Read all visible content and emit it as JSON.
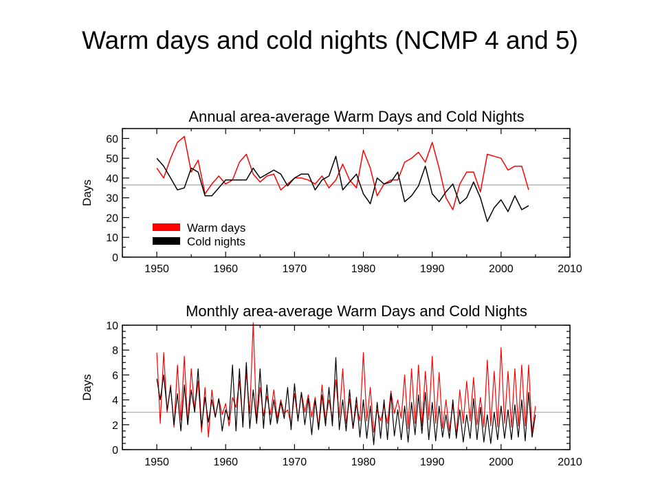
{
  "title": "Warm days and cold nights (NCMP 4 and 5)",
  "colors": {
    "warm": "#ff0000",
    "cold": "#000000",
    "reference": "#a6a6a6",
    "axes": "#000000"
  },
  "chart_data": [
    {
      "type": "line",
      "title": "Annual area-average Warm Days and Cold Nights",
      "xlabel": "",
      "ylabel": "Days",
      "xlim": [
        1945,
        2010
      ],
      "ylim": [
        0,
        65
      ],
      "x_ticks": [
        1950,
        1960,
        1970,
        1980,
        1990,
        2000,
        2010
      ],
      "y_ticks": [
        0,
        10,
        20,
        30,
        40,
        50,
        60
      ],
      "grid": false,
      "legend_position": "bottom-left",
      "reference_line": 36.5,
      "legend": [
        {
          "label": "Warm days",
          "color": "#ff0000"
        },
        {
          "label": "Cold nights",
          "color": "#000000"
        }
      ],
      "x": [
        1950,
        1951,
        1952,
        1953,
        1954,
        1955,
        1956,
        1957,
        1958,
        1959,
        1960,
        1961,
        1962,
        1963,
        1964,
        1965,
        1966,
        1967,
        1968,
        1969,
        1970,
        1971,
        1972,
        1973,
        1974,
        1975,
        1976,
        1977,
        1978,
        1979,
        1980,
        1981,
        1982,
        1983,
        1984,
        1985,
        1986,
        1987,
        1988,
        1989,
        1990,
        1991,
        1992,
        1993,
        1994,
        1995,
        1996,
        1997,
        1998,
        1999,
        2000,
        2001,
        2002,
        2003,
        2004
      ],
      "series": [
        {
          "name": "Warm days",
          "color": "#ff0000",
          "values": [
            45,
            40,
            50,
            58,
            61,
            43,
            49,
            32,
            37,
            41,
            37,
            39,
            48,
            52,
            42,
            38,
            41,
            42,
            34,
            37,
            40,
            40,
            39,
            37,
            41,
            35,
            39,
            47,
            39,
            35,
            54,
            45,
            31,
            37,
            39,
            39,
            48,
            50,
            53,
            48,
            58,
            45,
            30,
            24,
            37,
            43,
            43,
            33,
            52,
            51,
            50,
            44,
            46,
            46,
            34
          ]
        },
        {
          "name": "Cold nights",
          "color": "#000000",
          "values": [
            50,
            46,
            40,
            34,
            35,
            45,
            43,
            31,
            31,
            35,
            39,
            39,
            39,
            39,
            45,
            40,
            42,
            44,
            42,
            36,
            40,
            42,
            42,
            34,
            39,
            41,
            51,
            34,
            38,
            42,
            32,
            27,
            40,
            37,
            38,
            43,
            28,
            31,
            36,
            46,
            32,
            28,
            33,
            37,
            27,
            30,
            38,
            30,
            18,
            25,
            29,
            23,
            31,
            24,
            26
          ]
        }
      ]
    },
    {
      "type": "line",
      "title": "Monthly area-average Warm Days and Cold Nights",
      "xlabel": "",
      "ylabel": "Days",
      "xlim": [
        1945,
        2010
      ],
      "ylim": [
        0,
        10
      ],
      "x_ticks": [
        1950,
        1960,
        1970,
        1980,
        1990,
        2000,
        2010
      ],
      "y_ticks": [
        0,
        2,
        4,
        6,
        8,
        10
      ],
      "grid": false,
      "reference_line": 3.0,
      "x": [
        1950.0,
        1950.5,
        1951.0,
        1951.5,
        1952.0,
        1952.5,
        1953.0,
        1953.5,
        1954.0,
        1954.5,
        1955.0,
        1955.5,
        1956.0,
        1956.5,
        1957.0,
        1957.5,
        1958.0,
        1958.5,
        1959.0,
        1959.5,
        1960.0,
        1960.5,
        1961.0,
        1961.5,
        1962.0,
        1962.5,
        1963.0,
        1963.5,
        1964.0,
        1964.5,
        1965.0,
        1965.5,
        1966.0,
        1966.5,
        1967.0,
        1967.5,
        1968.0,
        1968.5,
        1969.0,
        1969.5,
        1970.0,
        1970.5,
        1971.0,
        1971.5,
        1972.0,
        1972.5,
        1973.0,
        1973.5,
        1974.0,
        1974.5,
        1975.0,
        1975.5,
        1976.0,
        1976.5,
        1977.0,
        1977.5,
        1978.0,
        1978.5,
        1979.0,
        1979.5,
        1980.0,
        1980.5,
        1981.0,
        1981.5,
        1982.0,
        1982.5,
        1983.0,
        1983.5,
        1984.0,
        1984.5,
        1985.0,
        1985.5,
        1986.0,
        1986.5,
        1987.0,
        1987.5,
        1988.0,
        1988.5,
        1989.0,
        1989.5,
        1990.0,
        1990.5,
        1991.0,
        1991.5,
        1992.0,
        1992.5,
        1993.0,
        1993.5,
        1994.0,
        1994.5,
        1995.0,
        1995.5,
        1996.0,
        1996.5,
        1997.0,
        1997.5,
        1998.0,
        1998.5,
        1999.0,
        1999.5,
        2000.0,
        2000.5,
        2001.0,
        2001.5,
        2002.0,
        2002.5,
        2003.0,
        2003.5,
        2004.0,
        2004.5,
        2005.0
      ],
      "series": [
        {
          "name": "Warm days",
          "color": "#ff0000",
          "values": [
            7.8,
            2.1,
            7.8,
            3.0,
            5.2,
            1.8,
            6.8,
            2.4,
            7.5,
            2.0,
            6.5,
            3.2,
            5.5,
            1.4,
            5.0,
            1.0,
            4.8,
            2.6,
            4.1,
            2.8,
            3.7,
            1.9,
            4.2,
            3.4,
            5.5,
            2.2,
            6.2,
            2.9,
            10.2,
            2.1,
            5.0,
            2.7,
            4.3,
            2.8,
            4.8,
            2.5,
            4.0,
            2.9,
            3.2,
            2.0,
            4.5,
            2.4,
            4.6,
            3.0,
            4.4,
            2.6,
            4.2,
            1.8,
            5.2,
            2.4,
            4.0,
            2.5,
            5.6,
            2.6,
            6.5,
            2.1,
            4.1,
            1.7,
            3.6,
            2.3,
            7.8,
            2.3,
            5.0,
            1.4,
            3.2,
            2.3,
            3.5,
            2.1,
            4.7,
            2.9,
            4.0,
            2.5,
            6.0,
            1.7,
            6.5,
            2.1,
            6.8,
            1.9,
            6.3,
            2.4,
            7.5,
            2.1,
            6.2,
            1.7,
            4.0,
            1.5,
            3.6,
            1.2,
            4.8,
            2.1,
            5.5,
            2.3,
            5.8,
            2.0,
            4.2,
            1.8,
            7.2,
            1.9,
            6.3,
            1.8,
            8.2,
            2.1,
            6.3,
            1.8,
            6.5,
            1.9,
            6.8,
            1.9,
            6.8,
            1.4,
            3.5
          ]
        },
        {
          "name": "Cold nights",
          "color": "#000000",
          "values": [
            5.7,
            4.0,
            6.0,
            3.2,
            5.0,
            2.0,
            4.5,
            1.5,
            5.2,
            2.0,
            4.8,
            3.0,
            6.5,
            1.8,
            4.2,
            2.2,
            4.0,
            2.6,
            4.1,
            1.5,
            3.2,
            2.4,
            6.8,
            1.5,
            6.5,
            1.8,
            7.0,
            1.7,
            4.8,
            2.1,
            6.5,
            1.7,
            5.2,
            2.0,
            4.0,
            2.1,
            3.8,
            2.5,
            5.0,
            1.6,
            5.3,
            2.3,
            4.6,
            2.0,
            4.1,
            1.2,
            4.0,
            1.6,
            4.4,
            1.9,
            5.0,
            1.9,
            7.4,
            1.6,
            4.0,
            1.5,
            4.8,
            1.7,
            4.2,
            1.0,
            4.0,
            0.9,
            3.5,
            0.4,
            3.8,
            0.9,
            4.0,
            0.8,
            4.5,
            1.1,
            3.2,
            0.8,
            3.5,
            0.6,
            3.8,
            1.2,
            4.4,
            1.3,
            4.6,
            0.8,
            3.8,
            0.7,
            3.5,
            1.0,
            2.8,
            0.9,
            4.0,
            0.9,
            3.2,
            0.6,
            2.8,
            0.9,
            4.1,
            0.8,
            3.4,
            0.6,
            2.8,
            0.5,
            3.0,
            0.8,
            3.5,
            0.9,
            3.2,
            0.8,
            3.6,
            1.0,
            4.0,
            0.7,
            4.6,
            1.0,
            2.8
          ]
        }
      ]
    }
  ]
}
